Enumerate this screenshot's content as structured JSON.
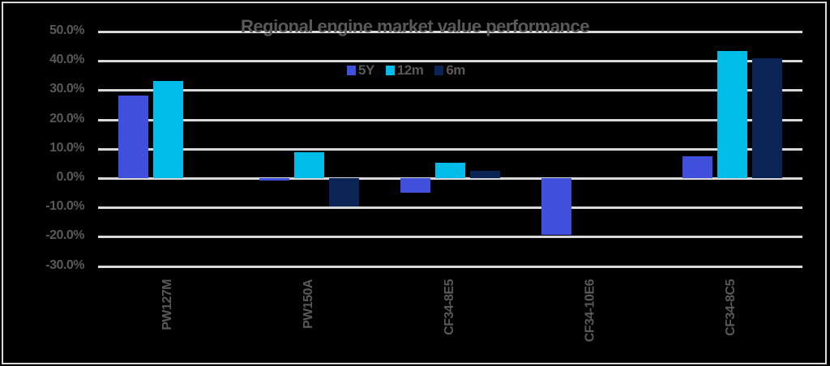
{
  "chart_data": {
    "type": "bar",
    "title": "Regional engine market value performance",
    "xlabel": "",
    "ylabel": "",
    "categories": [
      "PW127M",
      "PW150A",
      "CF34-8E5",
      "CF34-10E6",
      "CF34-8C5"
    ],
    "series": [
      {
        "name": "5Y",
        "color": "#4150dc",
        "values": [
          28.2,
          -0.8,
          -5.0,
          -19.3,
          7.5
        ]
      },
      {
        "name": "12m",
        "color": "#00bce8",
        "values": [
          33.1,
          8.8,
          5.2,
          null,
          43.4
        ]
      },
      {
        "name": "6m",
        "color": "#0a2456",
        "values": [
          null,
          -9.7,
          2.5,
          null,
          40.9
        ]
      }
    ],
    "ylim": [
      -30,
      50
    ],
    "yticks": [
      "50.0%",
      "40.0%",
      "30.0%",
      "20.0%",
      "10.0%",
      "0.0%",
      "-10.0%",
      "-20.0%",
      "-30.0%"
    ],
    "ytick_values": [
      50,
      40,
      30,
      20,
      10,
      0,
      -10,
      -20,
      -30
    ],
    "grid": true,
    "legend_position": "top"
  },
  "colors": {
    "background": "#000000",
    "grid": "#d9d9d9",
    "text": "#595959",
    "border": "#d9d9d9"
  }
}
